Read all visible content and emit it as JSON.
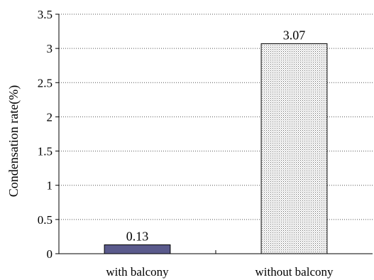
{
  "chart_data": {
    "type": "bar",
    "categories": [
      "with balcony",
      "without balcony"
    ],
    "values": [
      0.13,
      3.07
    ],
    "data_labels": [
      "0.13",
      "3.07"
    ],
    "title": "",
    "xlabel": "",
    "ylabel": "Condensation rate(%)",
    "ylim": [
      0,
      3.5
    ],
    "yticks": [
      0,
      0.5,
      1,
      1.5,
      2,
      2.5,
      3,
      3.5
    ],
    "ytick_labels": [
      "0",
      "0.5",
      "1",
      "1.5",
      "2",
      "2.5",
      "3",
      "3.5"
    ],
    "grid": "horizontal dotted",
    "legend": "none",
    "colors": {
      "with balcony": "#5a5a8c",
      "without balcony": "#d9d9d9 dotted pattern"
    }
  }
}
